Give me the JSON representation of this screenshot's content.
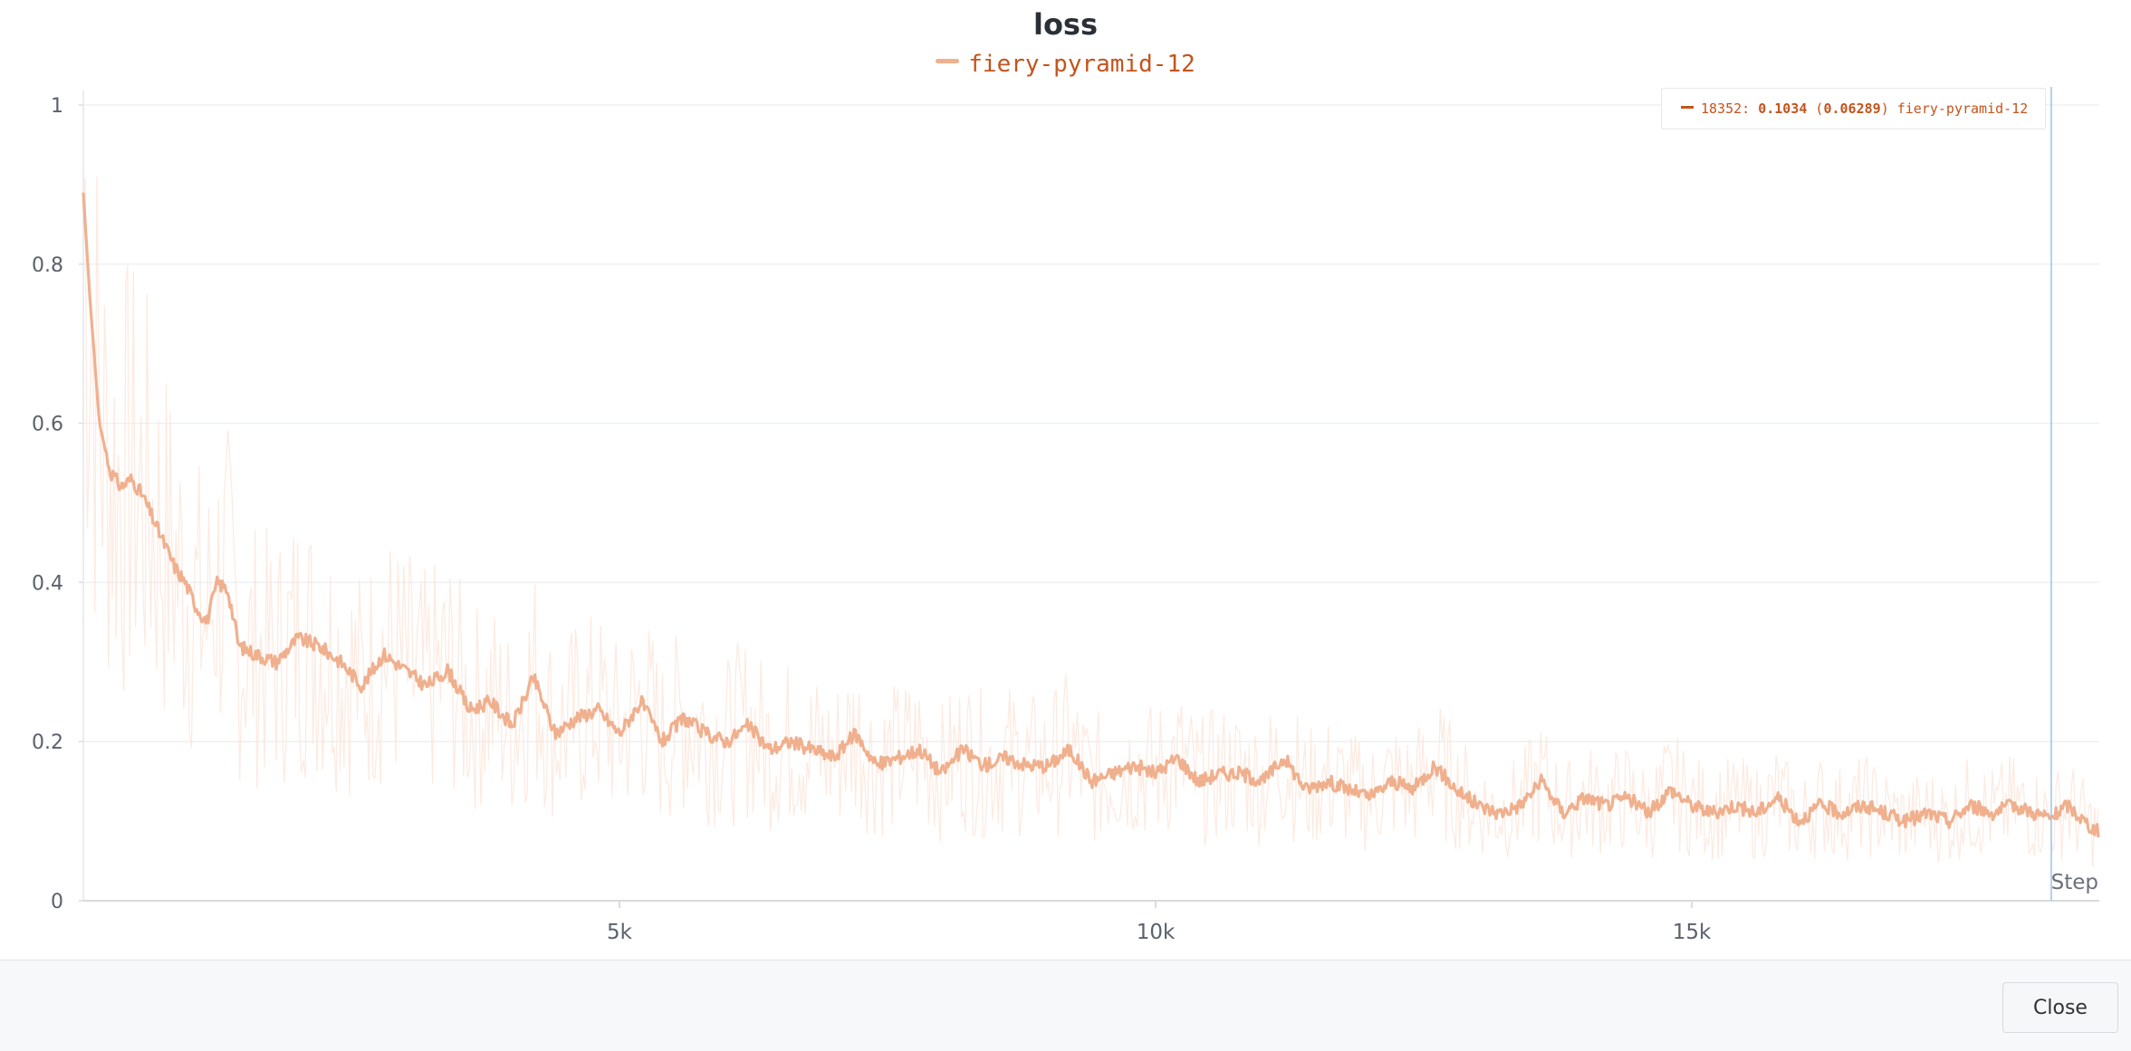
{
  "chart_data": {
    "type": "line",
    "title": "loss",
    "xlabel": "Step",
    "ylabel": "",
    "xlim": [
      0,
      18800
    ],
    "ylim": [
      0,
      1
    ],
    "x_ticks": [
      {
        "value": 5000,
        "label": "5k"
      },
      {
        "value": 10000,
        "label": "10k"
      },
      {
        "value": 15000,
        "label": "15k"
      }
    ],
    "y_ticks": [
      {
        "value": 0,
        "label": "0"
      },
      {
        "value": 0.2,
        "label": "0.2"
      },
      {
        "value": 0.4,
        "label": "0.4"
      },
      {
        "value": 0.6,
        "label": "0.6"
      },
      {
        "value": 0.8,
        "label": "0.8"
      },
      {
        "value": 1,
        "label": "1"
      }
    ],
    "grid": true,
    "legend_position": "top-center",
    "series": [
      {
        "name": "fiery-pyramid-12",
        "color": "#f0b08e",
        "raw_color": "#fbe3d6",
        "smoothed": [
          [
            0,
            0.89
          ],
          [
            60,
            0.76
          ],
          [
            150,
            0.6
          ],
          [
            250,
            0.54
          ],
          [
            350,
            0.52
          ],
          [
            450,
            0.53
          ],
          [
            550,
            0.51
          ],
          [
            650,
            0.48
          ],
          [
            750,
            0.45
          ],
          [
            850,
            0.42
          ],
          [
            950,
            0.4
          ],
          [
            1050,
            0.37
          ],
          [
            1150,
            0.35
          ],
          [
            1250,
            0.4
          ],
          [
            1350,
            0.39
          ],
          [
            1450,
            0.32
          ],
          [
            1600,
            0.31
          ],
          [
            1800,
            0.3
          ],
          [
            2000,
            0.33
          ],
          [
            2200,
            0.32
          ],
          [
            2400,
            0.3
          ],
          [
            2600,
            0.27
          ],
          [
            2800,
            0.31
          ],
          [
            3000,
            0.29
          ],
          [
            3200,
            0.27
          ],
          [
            3400,
            0.29
          ],
          [
            3600,
            0.24
          ],
          [
            3800,
            0.25
          ],
          [
            4000,
            0.22
          ],
          [
            4200,
            0.28
          ],
          [
            4400,
            0.21
          ],
          [
            4600,
            0.23
          ],
          [
            4800,
            0.24
          ],
          [
            5000,
            0.21
          ],
          [
            5200,
            0.25
          ],
          [
            5400,
            0.2
          ],
          [
            5600,
            0.23
          ],
          [
            5800,
            0.21
          ],
          [
            6000,
            0.2
          ],
          [
            6200,
            0.22
          ],
          [
            6400,
            0.19
          ],
          [
            6600,
            0.2
          ],
          [
            6800,
            0.19
          ],
          [
            7000,
            0.18
          ],
          [
            7200,
            0.21
          ],
          [
            7400,
            0.17
          ],
          [
            7600,
            0.18
          ],
          [
            7800,
            0.19
          ],
          [
            8000,
            0.16
          ],
          [
            8200,
            0.19
          ],
          [
            8400,
            0.17
          ],
          [
            8600,
            0.18
          ],
          [
            8800,
            0.17
          ],
          [
            9000,
            0.17
          ],
          [
            9200,
            0.19
          ],
          [
            9400,
            0.15
          ],
          [
            9600,
            0.16
          ],
          [
            9800,
            0.17
          ],
          [
            10000,
            0.16
          ],
          [
            10200,
            0.18
          ],
          [
            10400,
            0.15
          ],
          [
            10600,
            0.16
          ],
          [
            10800,
            0.16
          ],
          [
            11000,
            0.15
          ],
          [
            11200,
            0.18
          ],
          [
            11400,
            0.14
          ],
          [
            11600,
            0.15
          ],
          [
            11800,
            0.14
          ],
          [
            12000,
            0.13
          ],
          [
            12200,
            0.15
          ],
          [
            12400,
            0.14
          ],
          [
            12600,
            0.17
          ],
          [
            12800,
            0.14
          ],
          [
            13000,
            0.12
          ],
          [
            13200,
            0.11
          ],
          [
            13400,
            0.12
          ],
          [
            13600,
            0.15
          ],
          [
            13800,
            0.11
          ],
          [
            14000,
            0.13
          ],
          [
            14200,
            0.12
          ],
          [
            14400,
            0.13
          ],
          [
            14600,
            0.11
          ],
          [
            14800,
            0.14
          ],
          [
            15000,
            0.12
          ],
          [
            15200,
            0.11
          ],
          [
            15400,
            0.12
          ],
          [
            15600,
            0.11
          ],
          [
            15800,
            0.13
          ],
          [
            16000,
            0.1
          ],
          [
            16200,
            0.12
          ],
          [
            16400,
            0.11
          ],
          [
            16600,
            0.12
          ],
          [
            16800,
            0.11
          ],
          [
            17000,
            0.1
          ],
          [
            17200,
            0.11
          ],
          [
            17400,
            0.1
          ],
          [
            17600,
            0.12
          ],
          [
            17800,
            0.11
          ],
          [
            18000,
            0.12
          ],
          [
            18200,
            0.11
          ],
          [
            18352,
            0.1034
          ],
          [
            18500,
            0.12
          ],
          [
            18700,
            0.095
          ],
          [
            18800,
            0.085
          ]
        ]
      }
    ],
    "hover": {
      "step": 18352,
      "step_text": "18352:",
      "value_text": "0.1034",
      "raw_text": "0.06289",
      "series_name": "fiery-pyramid-12"
    }
  },
  "footer": {
    "close_label": "Close"
  }
}
